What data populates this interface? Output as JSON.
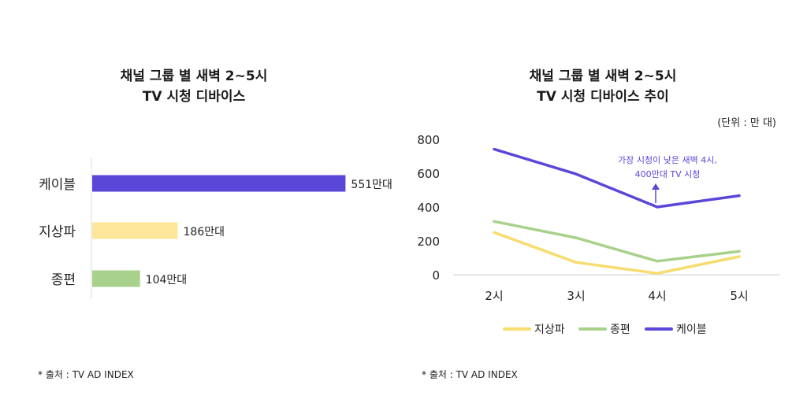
{
  "left": {
    "title_line1": "채널 그룹 별 새벽 2~5시",
    "title_line2": "TV 시청 디바이스",
    "source": "* 출처 : TV AD INDEX"
  },
  "right": {
    "title_line1": "채널 그룹 별 새벽 2~5시",
    "title_line2": "TV 시청 디바이스 추이",
    "unit": "(단위 : 만 대)",
    "annotation_line1": "가장 시청이 낮은 새벽 4시,",
    "annotation_line2": "400만대 TV 시청",
    "source": "* 출처 : TV AD INDEX"
  },
  "chart_data": [
    {
      "type": "bar",
      "orientation": "horizontal",
      "title": "채널 그룹 별 새벽 2~5시 TV 시청 디바이스",
      "categories": [
        "케이블",
        "지상파",
        "종편"
      ],
      "values": [
        551,
        186,
        104
      ],
      "value_labels": [
        "551만대",
        "186만대",
        "104만대"
      ],
      "colors": [
        "#5a47d8",
        "#fde79b",
        "#a8d18b"
      ],
      "xlim": [
        0,
        600
      ]
    },
    {
      "type": "line",
      "title": "채널 그룹 별 새벽 2~5시 TV 시청 디바이스 추이",
      "categories": [
        "2시",
        "3시",
        "4시",
        "5시"
      ],
      "ylim": [
        0,
        800
      ],
      "yticks": [
        0,
        200,
        400,
        600,
        800
      ],
      "grid": false,
      "legend_position": "bottom",
      "series": [
        {
          "name": "지상파",
          "values": [
            250,
            73,
            8,
            107
          ],
          "color": "#f7dc6f"
        },
        {
          "name": "종편",
          "values": [
            315,
            218,
            80,
            138
          ],
          "color": "#a8d18b"
        },
        {
          "name": "케이블",
          "values": [
            742,
            595,
            400,
            467
          ],
          "color": "#5a47d8"
        }
      ]
    }
  ]
}
